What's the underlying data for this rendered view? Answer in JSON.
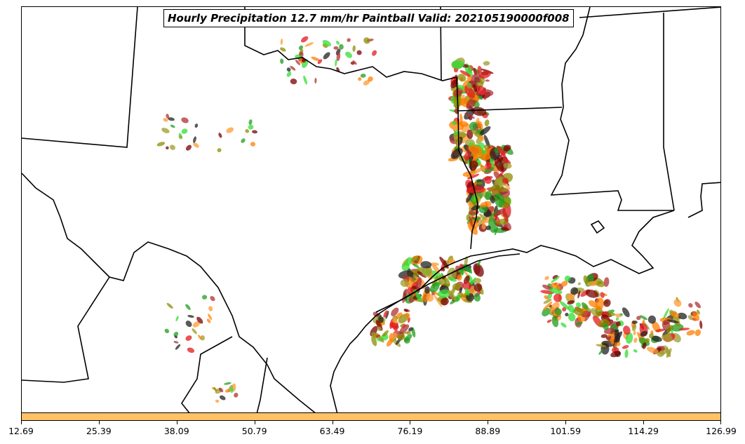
{
  "title": "Hourly Precipitation 12.7 mm/hr Paintball Valid: 202105190000f008",
  "colorbar": {
    "color": "#ffc266",
    "ticks": [
      "12.69",
      "25.39",
      "38.09",
      "50.79",
      "63.49",
      "76.19",
      "88.89",
      "101.59",
      "114.29",
      "126.99"
    ]
  },
  "colors": {
    "member_colors": [
      "#e31a1c",
      "#1e9e1e",
      "#ff7f00",
      "#222222",
      "#7a0000",
      "#8c8c00",
      "#33dd33",
      "#b03030",
      "#9c9c2a",
      "#ff9933"
    ]
  },
  "map": {
    "region": "Texas, Louisiana, Gulf Coast",
    "boundaries": [
      "state-borders",
      "coastline",
      "us-mexico-border"
    ]
  }
}
